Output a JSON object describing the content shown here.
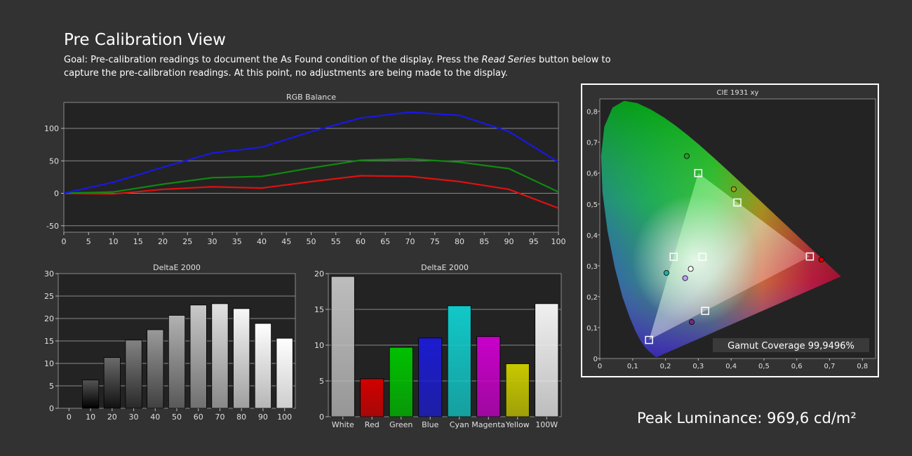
{
  "header": {
    "title": "Pre Calibration View",
    "goal_prefix": "Goal: Pre-calibration readings to document the As Found condition of the display. Press the ",
    "goal_emphasis": "Read Series",
    "goal_suffix": " button below to capture the pre-calibration readings. At this point, no adjustments are being made to the display."
  },
  "peak_luminance": "Peak Luminance: 969,6 cd/m²",
  "colors": {
    "background": "#323232",
    "plot_background": "#232323",
    "red": "#e01010",
    "green": "#0f8a0f",
    "blue": "#1818e8"
  },
  "chart_data": [
    {
      "type": "line",
      "title": "RGB Balance",
      "x": [
        0,
        10,
        20,
        30,
        40,
        50,
        60,
        70,
        80,
        90,
        100
      ],
      "xticks": [
        0,
        5,
        10,
        15,
        20,
        25,
        30,
        35,
        40,
        45,
        50,
        55,
        60,
        65,
        70,
        75,
        80,
        85,
        90,
        95,
        100
      ],
      "yticks": [
        -50,
        0,
        50,
        100
      ],
      "xlim": [
        0,
        100
      ],
      "ylim": [
        -60,
        140
      ],
      "grid": true,
      "series": [
        {
          "color": "#e01010",
          "values": [
            0,
            -1,
            6,
            10,
            8,
            18,
            27,
            26,
            18,
            6,
            -23
          ]
        },
        {
          "color": "#0f8a0f",
          "values": [
            0,
            2,
            14,
            24,
            26,
            39,
            51,
            53,
            48,
            38,
            2
          ]
        },
        {
          "color": "#1818e8",
          "values": [
            0,
            17,
            40,
            62,
            71,
            95,
            116,
            125,
            120,
            95,
            48
          ]
        }
      ]
    },
    {
      "type": "bar",
      "title": "DeltaE 2000",
      "categories": [
        "0",
        "10",
        "20",
        "30",
        "40",
        "50",
        "60",
        "70",
        "80",
        "90",
        "100"
      ],
      "values": [
        0,
        6.3,
        11.3,
        15.2,
        17.5,
        20.7,
        23.0,
        23.3,
        22.2,
        18.9,
        15.6
      ],
      "yticks": [
        0,
        5,
        10,
        15,
        20,
        25,
        30
      ],
      "ylim": [
        0,
        30
      ],
      "grid": true
    },
    {
      "type": "bar",
      "title": "DeltaE 2000",
      "categories": [
        "White",
        "Red",
        "Green",
        "Blue",
        "Cyan",
        "Magenta",
        "Yellow",
        "100W"
      ],
      "values": [
        19.6,
        5.3,
        9.7,
        11.0,
        15.5,
        11.2,
        7.4,
        15.8
      ],
      "colors": [
        "#bdbdbd",
        "#d10000",
        "#00c000",
        "#1c1cd0",
        "#12c8c8",
        "#c800c8",
        "#c8c800",
        "#f0f0f0"
      ],
      "yticks": [
        0,
        5,
        10,
        15,
        20
      ],
      "ylim": [
        0,
        20
      ],
      "grid": true
    },
    {
      "type": "scatter",
      "title": "CIE 1931 xy",
      "xticks": [
        "0",
        "0,1",
        "0,2",
        "0,3",
        "0,4",
        "0,5",
        "0,6",
        "0,7",
        "0,8"
      ],
      "yticks": [
        "0",
        "0,1",
        "0,2",
        "0,3",
        "0,4",
        "0,5",
        "0,6",
        "0,7",
        "0,8"
      ],
      "xlim": [
        0,
        0.84
      ],
      "ylim": [
        0,
        0.84
      ],
      "gamut_coverage_label": "Gamut Coverage 99,9496%",
      "targets": [
        {
          "name": "red",
          "x": 0.64,
          "y": 0.33
        },
        {
          "name": "green",
          "x": 0.3,
          "y": 0.6
        },
        {
          "name": "blue",
          "x": 0.15,
          "y": 0.06
        },
        {
          "name": "cyan",
          "x": 0.225,
          "y": 0.329
        },
        {
          "name": "magenta",
          "x": 0.321,
          "y": 0.154
        },
        {
          "name": "yellow",
          "x": 0.419,
          "y": 0.505
        },
        {
          "name": "white",
          "x": 0.3127,
          "y": 0.329
        }
      ],
      "measurements": [
        {
          "name": "red",
          "x": 0.675,
          "y": 0.32,
          "color": "#d00000"
        },
        {
          "name": "green",
          "x": 0.265,
          "y": 0.655,
          "color": "#2a9a2a"
        },
        {
          "name": "blue",
          "x": 0.28,
          "y": 0.118,
          "color": "#7a2a7a"
        },
        {
          "name": "cyan",
          "x": 0.203,
          "y": 0.277,
          "color": "#20b0a0"
        },
        {
          "name": "magenta",
          "x": 0.26,
          "y": 0.26,
          "color": "#c0a0ff"
        },
        {
          "name": "yellow",
          "x": 0.408,
          "y": 0.548,
          "color": "#a0a020"
        },
        {
          "name": "white",
          "x": 0.277,
          "y": 0.29,
          "color": "#ffffff"
        }
      ]
    }
  ]
}
